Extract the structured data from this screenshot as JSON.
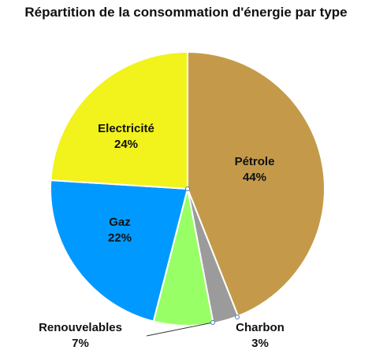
{
  "chart_data": {
    "type": "pie",
    "title": "Répartition de la consommation d'énergie par type",
    "slices": [
      {
        "label": "Pétrole",
        "percent_text": "44%",
        "value": 44,
        "color": "#C49A4A"
      },
      {
        "label": "Charbon",
        "percent_text": "3%",
        "value": 3,
        "color": "#9B9B9B"
      },
      {
        "label": "Renouvelables",
        "percent_text": "7%",
        "value": 7,
        "color": "#99FF66"
      },
      {
        "label": "Gaz",
        "percent_text": "22%",
        "value": 22,
        "color": "#0099FF"
      },
      {
        "label": "Electricité",
        "percent_text": "24%",
        "value": 24,
        "color": "#F2F21C"
      }
    ]
  }
}
